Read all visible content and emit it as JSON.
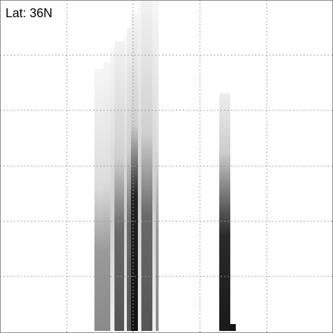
{
  "label": "Lat: 36N"
}
